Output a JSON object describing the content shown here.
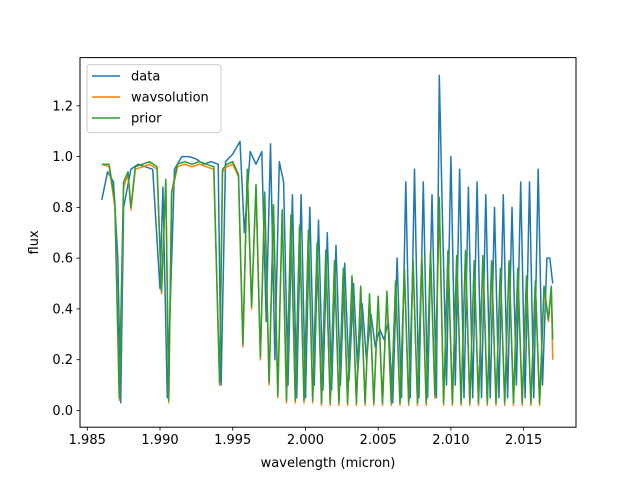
{
  "chart_data": {
    "type": "line",
    "title": "",
    "xlabel": "wavelength (micron)",
    "ylabel": "flux",
    "xlim": [
      1.9845,
      2.0186
    ],
    "ylim": [
      -0.066,
      1.39
    ],
    "x_ticks": [
      1.985,
      1.99,
      1.995,
      2.0,
      2.005,
      2.01,
      2.015
    ],
    "x_tick_labels": [
      "1.985",
      "1.990",
      "1.995",
      "2.000",
      "2.005",
      "2.010",
      "2.015"
    ],
    "y_ticks": [
      0.0,
      0.2,
      0.4,
      0.6,
      0.8,
      1.0,
      1.2
    ],
    "y_tick_labels": [
      "0.0",
      "0.2",
      "0.4",
      "0.6",
      "0.8",
      "1.0",
      "1.2"
    ],
    "grid": false,
    "legend": {
      "placement": "top-left",
      "entries": [
        "data",
        "wavsolution",
        "prior"
      ]
    },
    "series": [
      {
        "name": "data",
        "color": "#1f77b4",
        "x": [
          1.986,
          1.9864,
          1.9868,
          1.9871,
          1.9873,
          1.9875,
          1.988,
          1.9885,
          1.989,
          1.9895,
          1.99,
          1.9902,
          1.9905,
          1.991,
          1.9915,
          1.992,
          1.9925,
          1.993,
          1.9935,
          1.994,
          1.9942,
          1.9945,
          1.995,
          1.9955,
          1.9958,
          1.9962,
          1.9966,
          1.997,
          1.9973,
          1.9976,
          1.9979,
          1.9982,
          1.9985,
          1.9988,
          1.9991,
          1.9994,
          1.9997,
          2.0,
          2.0003,
          2.0006,
          2.0009,
          2.0012,
          2.0015,
          2.0018,
          2.0021,
          2.0024,
          2.0027,
          2.003,
          2.0033,
          2.0036,
          2.0039,
          2.0042,
          2.0045,
          2.0048,
          2.0051,
          2.0054,
          2.0057,
          2.006,
          2.0063,
          2.0066,
          2.0069,
          2.0072,
          2.0075,
          2.0078,
          2.0081,
          2.0084,
          2.0087,
          2.009,
          2.0092,
          2.0094,
          2.0097,
          2.01,
          2.0103,
          2.0106,
          2.0109,
          2.0112,
          2.0115,
          2.0118,
          2.0121,
          2.0124,
          2.0127,
          2.013,
          2.0133,
          2.0136,
          2.0139,
          2.0142,
          2.0145,
          2.0148,
          2.0151,
          2.0154,
          2.0157,
          2.016,
          2.0163,
          2.0166,
          2.0168,
          2.017
        ],
        "y": [
          0.83,
          0.94,
          0.9,
          0.6,
          0.03,
          0.8,
          0.95,
          0.97,
          0.96,
          0.95,
          0.48,
          0.88,
          0.05,
          0.95,
          1.0,
          1.0,
          0.99,
          0.97,
          0.98,
          0.97,
          0.1,
          0.98,
          1.01,
          1.06,
          0.7,
          1.02,
          0.97,
          1.02,
          0.35,
          1.05,
          0.2,
          0.98,
          0.9,
          0.1,
          0.85,
          0.05,
          0.85,
          0.05,
          0.8,
          0.1,
          0.75,
          0.08,
          0.7,
          0.08,
          0.65,
          0.1,
          0.58,
          0.12,
          0.5,
          0.15,
          0.42,
          0.2,
          0.38,
          0.25,
          0.32,
          0.28,
          0.35,
          0.03,
          0.6,
          0.05,
          0.9,
          0.05,
          0.95,
          0.05,
          0.9,
          0.05,
          0.85,
          0.05,
          1.32,
          0.8,
          0.1,
          1.0,
          0.1,
          0.95,
          0.05,
          0.88,
          0.05,
          0.9,
          0.05,
          0.85,
          0.05,
          0.8,
          0.05,
          0.85,
          0.05,
          0.8,
          0.1,
          0.9,
          0.05,
          0.9,
          0.05,
          0.95,
          0.1,
          0.6,
          0.6,
          0.5
        ]
      },
      {
        "name": "wavsolution",
        "color": "#ff7f0e",
        "x": [
          1.986,
          1.9865,
          1.9869,
          1.9872,
          1.9875,
          1.9878,
          1.988,
          1.9883,
          1.9888,
          1.9893,
          1.9898,
          1.9901,
          1.9904,
          1.9906,
          1.9908,
          1.9912,
          1.9917,
          1.9922,
          1.9927,
          1.9932,
          1.9937,
          1.9941,
          1.9943,
          1.9946,
          1.995,
          1.9954,
          1.9957,
          1.996,
          1.9963,
          1.9966,
          1.9969,
          1.9972,
          1.9975,
          1.9978,
          1.9981,
          1.9984,
          1.9987,
          1.999,
          1.9993,
          1.9996,
          1.9999,
          2.0002,
          2.0005,
          2.0008,
          2.0011,
          2.0014,
          2.0017,
          2.002,
          2.0023,
          2.0026,
          2.0029,
          2.0032,
          2.0035,
          2.0038,
          2.0041,
          2.0044,
          2.0047,
          2.005,
          2.0053,
          2.0056,
          2.0059,
          2.0062,
          2.0065,
          2.0068,
          2.0071,
          2.0074,
          2.0077,
          2.008,
          2.0083,
          2.0086,
          2.0089,
          2.0092,
          2.0095,
          2.0098,
          2.0101,
          2.0104,
          2.0107,
          2.011,
          2.0113,
          2.0116,
          2.0119,
          2.0122,
          2.0125,
          2.0128,
          2.0131,
          2.0134,
          2.0137,
          2.014,
          2.0143,
          2.0146,
          2.0149,
          2.0152,
          2.0155,
          2.0158,
          2.0161,
          2.0164,
          2.0167,
          2.0169,
          2.017
        ],
        "y": [
          0.97,
          0.96,
          0.8,
          0.04,
          0.88,
          0.93,
          0.79,
          0.95,
          0.96,
          0.97,
          0.95,
          0.46,
          0.9,
          0.03,
          0.85,
          0.96,
          0.97,
          0.96,
          0.97,
          0.96,
          0.95,
          0.1,
          0.94,
          0.96,
          0.97,
          0.92,
          0.25,
          0.94,
          0.4,
          0.88,
          0.2,
          0.85,
          0.1,
          0.8,
          0.05,
          0.78,
          0.03,
          0.76,
          0.03,
          0.72,
          0.03,
          0.7,
          0.03,
          0.65,
          0.02,
          0.62,
          0.02,
          0.58,
          0.02,
          0.55,
          0.02,
          0.52,
          0.02,
          0.48,
          0.02,
          0.45,
          0.02,
          0.44,
          0.02,
          0.46,
          0.02,
          0.5,
          0.02,
          0.55,
          0.02,
          0.58,
          0.02,
          0.6,
          0.02,
          0.62,
          0.05,
          0.8,
          0.02,
          0.62,
          0.02,
          0.6,
          0.02,
          0.62,
          0.02,
          0.58,
          0.02,
          0.6,
          0.02,
          0.58,
          0.02,
          0.55,
          0.02,
          0.58,
          0.02,
          0.55,
          0.02,
          0.52,
          0.02,
          0.5,
          0.02,
          0.48,
          0.35,
          0.48,
          0.2
        ]
      },
      {
        "name": "prior",
        "color": "#2ca02c",
        "x": [
          1.986,
          1.9865,
          1.9869,
          1.9872,
          1.9875,
          1.9878,
          1.988,
          1.9883,
          1.9888,
          1.9893,
          1.9898,
          1.9901,
          1.9904,
          1.9906,
          1.9908,
          1.9912,
          1.9917,
          1.9922,
          1.9927,
          1.9932,
          1.9937,
          1.9941,
          1.9943,
          1.9946,
          1.995,
          1.9954,
          1.9957,
          1.996,
          1.9963,
          1.9966,
          1.9969,
          1.9972,
          1.9975,
          1.9978,
          1.9981,
          1.9984,
          1.9987,
          1.999,
          1.9993,
          1.9996,
          1.9999,
          2.0002,
          2.0005,
          2.0008,
          2.0011,
          2.0014,
          2.0017,
          2.002,
          2.0023,
          2.0026,
          2.0029,
          2.0032,
          2.0035,
          2.0038,
          2.0041,
          2.0044,
          2.0047,
          2.005,
          2.0053,
          2.0056,
          2.0059,
          2.0062,
          2.0065,
          2.0068,
          2.0071,
          2.0074,
          2.0077,
          2.008,
          2.0083,
          2.0086,
          2.0089,
          2.0092,
          2.0095,
          2.0098,
          2.0101,
          2.0104,
          2.0107,
          2.011,
          2.0113,
          2.0116,
          2.0119,
          2.0122,
          2.0125,
          2.0128,
          2.0131,
          2.0134,
          2.0137,
          2.014,
          2.0143,
          2.0146,
          2.0149,
          2.0152,
          2.0155,
          2.0158,
          2.0161,
          2.0164,
          2.0167,
          2.0169,
          2.017
        ],
        "y": [
          0.97,
          0.97,
          0.82,
          0.05,
          0.9,
          0.94,
          0.8,
          0.96,
          0.97,
          0.98,
          0.96,
          0.47,
          0.91,
          0.04,
          0.86,
          0.97,
          0.98,
          0.97,
          0.98,
          0.97,
          0.96,
          0.11,
          0.95,
          0.97,
          0.98,
          0.93,
          0.26,
          0.95,
          0.41,
          0.89,
          0.21,
          0.86,
          0.11,
          0.81,
          0.06,
          0.79,
          0.04,
          0.77,
          0.04,
          0.73,
          0.04,
          0.71,
          0.04,
          0.66,
          0.03,
          0.63,
          0.03,
          0.59,
          0.03,
          0.56,
          0.03,
          0.53,
          0.03,
          0.49,
          0.03,
          0.46,
          0.03,
          0.45,
          0.03,
          0.47,
          0.03,
          0.51,
          0.03,
          0.56,
          0.03,
          0.59,
          0.03,
          0.61,
          0.03,
          0.63,
          0.06,
          0.84,
          0.03,
          0.63,
          0.03,
          0.61,
          0.03,
          0.63,
          0.03,
          0.59,
          0.03,
          0.61,
          0.03,
          0.59,
          0.03,
          0.56,
          0.03,
          0.59,
          0.03,
          0.56,
          0.03,
          0.53,
          0.03,
          0.51,
          0.03,
          0.49,
          0.36,
          0.49,
          0.28
        ]
      }
    ]
  }
}
